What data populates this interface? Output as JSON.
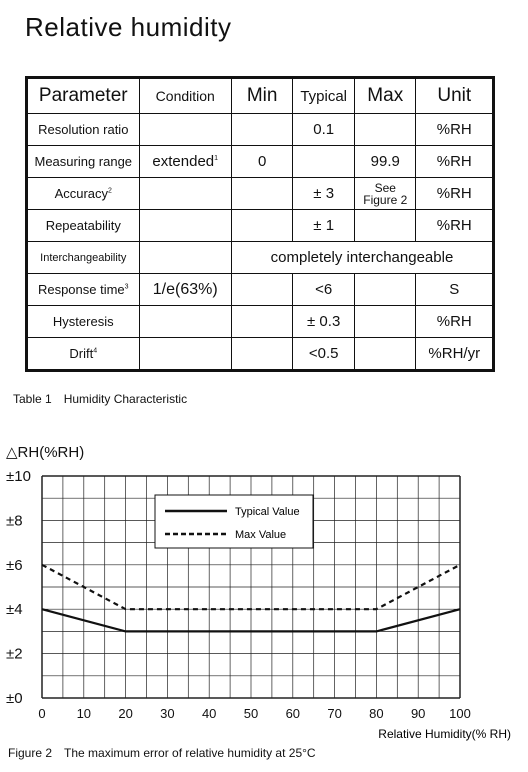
{
  "title": "Relative humidity",
  "table": {
    "headers": [
      "Parameter",
      "Condition",
      "Min",
      "Typical",
      "Max",
      "Unit"
    ],
    "rows": [
      {
        "param": "Resolution ratio",
        "cond": "",
        "cond_sup": "",
        "min": "",
        "typ": "0.1",
        "max": "",
        "unit": "%RH"
      },
      {
        "param": "Measuring range",
        "cond": "extended",
        "cond_sup": "1",
        "min": "0",
        "typ": "",
        "max": "99.9",
        "unit": "%RH"
      },
      {
        "param": "Accuracy",
        "param_sup": "2",
        "cond": "",
        "min": "",
        "typ": "± 3",
        "max_line1": "See",
        "max_line2": "Figure 2",
        "unit": "%RH"
      },
      {
        "param": "Repeatability",
        "cond": "",
        "min": "",
        "typ": "± 1",
        "max": "",
        "unit": "%RH"
      },
      {
        "param": "Interchangeability",
        "span_text": "completely interchangeable"
      },
      {
        "param": "Response time",
        "param_sup": "3",
        "cond": "1/e(63%)",
        "min": "",
        "typ": "<6",
        "max": "",
        "unit": "S"
      },
      {
        "param": "Hysteresis",
        "cond": "",
        "min": "",
        "typ": "± 0.3",
        "max": "",
        "unit": "%RH"
      },
      {
        "param": "Drift",
        "param_sup": "4",
        "cond": "",
        "min": "",
        "typ": "<0.5",
        "max": "",
        "unit": "%RH/yr"
      }
    ]
  },
  "table_caption": {
    "label": "Table 1",
    "text": "Humidity Characteristic"
  },
  "figure_caption": {
    "label": "Figure 2",
    "text": "The maximum error of relative humidity at 25°C"
  },
  "chart_data": {
    "type": "line",
    "ylabel": "△RH(%RH)",
    "xlabel": "Relative Humidity(% RH)",
    "xlim": [
      0,
      100
    ],
    "ylim": [
      0,
      10
    ],
    "x_ticks": [
      0,
      10,
      20,
      30,
      40,
      50,
      60,
      70,
      80,
      90,
      100
    ],
    "y_ticks": [
      0,
      2,
      4,
      6,
      8,
      10
    ],
    "y_tick_labels": [
      "±0",
      "±2",
      "±4",
      "±6",
      "±8",
      "±10"
    ],
    "grid": true,
    "legend_position": "top-center",
    "series": [
      {
        "name": "Typical Value",
        "style": "solid",
        "x": [
          0,
          20,
          80,
          100
        ],
        "y": [
          4,
          3,
          3,
          4
        ]
      },
      {
        "name": "Max Value",
        "style": "dashed",
        "x": [
          0,
          20,
          80,
          100
        ],
        "y": [
          6,
          4,
          4,
          6
        ]
      }
    ]
  }
}
